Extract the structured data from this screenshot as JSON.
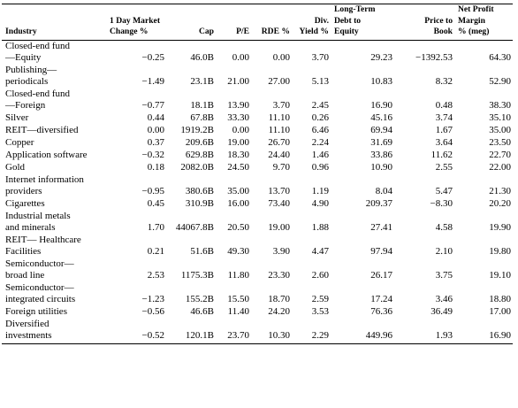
{
  "headers": {
    "industry": "Industry",
    "change1": "1 Day Market",
    "change2": "Change %",
    "cap": "Cap",
    "pe": "P/E",
    "rde": "RDE %",
    "div1": "Div.",
    "div2": "Yield %",
    "ltd1": "Long-Term",
    "ltd2": "Debt to",
    "ltd3": "Equity",
    "ptb1": "Price to",
    "ptb2": "Book",
    "npm1": "Net Profit",
    "npm2": "Margin",
    "npm3": "% (meg)"
  },
  "rows": [
    {
      "name1": "Closed-end fund",
      "name2": "—Equity",
      "change": "−0.25",
      "cap": "46.0B",
      "pe": "0.00",
      "rde": "0.00",
      "div": "3.70",
      "ltd": "29.23",
      "ptb": "−1392.53",
      "npm": "64.30"
    },
    {
      "name1": "Publishing—",
      "name2": "periodicals",
      "change": "−1.49",
      "cap": "23.1B",
      "pe": "21.00",
      "rde": "27.00",
      "div": "5.13",
      "ltd": "10.83",
      "ptb": "8.32",
      "npm": "52.90"
    },
    {
      "name1": "Closed-end fund",
      "name2": "—Foreign",
      "change": "−0.77",
      "cap": "18.1B",
      "pe": "13.90",
      "rde": "3.70",
      "div": "2.45",
      "ltd": "16.90",
      "ptb": "0.48",
      "npm": "38.30"
    },
    {
      "name1": "Silver",
      "name2": "",
      "change": "0.44",
      "cap": "67.8B",
      "pe": "33.30",
      "rde": "11.10",
      "div": "0.26",
      "ltd": "45.16",
      "ptb": "3.74",
      "npm": "35.10"
    },
    {
      "name1": "REIT—diversified",
      "name2": "",
      "change": "0.00",
      "cap": "1919.2B",
      "pe": "0.00",
      "rde": "11.10",
      "div": "6.46",
      "ltd": "69.94",
      "ptb": "1.67",
      "npm": "35.00"
    },
    {
      "name1": "Copper",
      "name2": "",
      "change": "0.37",
      "cap": "209.6B",
      "pe": "19.00",
      "rde": "26.70",
      "div": "2.24",
      "ltd": "31.69",
      "ptb": "3.64",
      "npm": "23.50"
    },
    {
      "name1": "Application software",
      "name2": "",
      "change": "−0.32",
      "cap": "629.8B",
      "pe": "18.30",
      "rde": "24.40",
      "div": "1.46",
      "ltd": "33.86",
      "ptb": "11.62",
      "npm": "22.70"
    },
    {
      "name1": "Gold",
      "name2": "",
      "change": "0.18",
      "cap": "2082.0B",
      "pe": "24.50",
      "rde": "9.70",
      "div": "0.96",
      "ltd": "10.90",
      "ptb": "2.55",
      "npm": "22.00"
    },
    {
      "name1": "Internet information",
      "name2": "providers",
      "change": "−0.95",
      "cap": "380.6B",
      "pe": "35.00",
      "rde": "13.70",
      "div": "1.19",
      "ltd": "8.04",
      "ptb": "5.47",
      "npm": "21.30"
    },
    {
      "name1": "Cigarettes",
      "name2": "",
      "change": "0.45",
      "cap": "310.9B",
      "pe": "16.00",
      "rde": "73.40",
      "div": "4.90",
      "ltd": "209.37",
      "ptb": "−8.30",
      "npm": "20.20"
    },
    {
      "name1": "Industrial metals",
      "name2": "and minerals",
      "change": "1.70",
      "cap": "44067.8B",
      "pe": "20.50",
      "rde": "19.00",
      "div": "1.88",
      "ltd": "27.41",
      "ptb": "4.58",
      "npm": "19.90"
    },
    {
      "name1": "REIT— Healthcare",
      "name2": "Facilities",
      "change": "0.21",
      "cap": "51.6B",
      "pe": "49.30",
      "rde": "3.90",
      "div": "4.47",
      "ltd": "97.94",
      "ptb": "2.10",
      "npm": "19.80"
    },
    {
      "name1": "Semiconductor—",
      "name2": "broad line",
      "change": "2.53",
      "cap": "1175.3B",
      "pe": "11.80",
      "rde": "23.30",
      "div": "2.60",
      "ltd": "26.17",
      "ptb": "3.75",
      "npm": "19.10"
    },
    {
      "name1": "Semiconductor—",
      "name2": "integrated circuits",
      "change": "−1.23",
      "cap": "155.2B",
      "pe": "15.50",
      "rde": "18.70",
      "div": "2.59",
      "ltd": "17.24",
      "ptb": "3.46",
      "npm": "18.80"
    },
    {
      "name1": "Foreign utilities",
      "name2": "",
      "change": "−0.56",
      "cap": "46.6B",
      "pe": "11.40",
      "rde": "24.20",
      "div": "3.53",
      "ltd": "76.36",
      "ptb": "36.49",
      "npm": "17.00"
    },
    {
      "name1": "Diversified",
      "name2": "investments",
      "change": "−0.52",
      "cap": "120.1B",
      "pe": "23.70",
      "rde": "10.30",
      "div": "2.29",
      "ltd": "449.96",
      "ptb": "1.93",
      "npm": "16.90"
    }
  ]
}
